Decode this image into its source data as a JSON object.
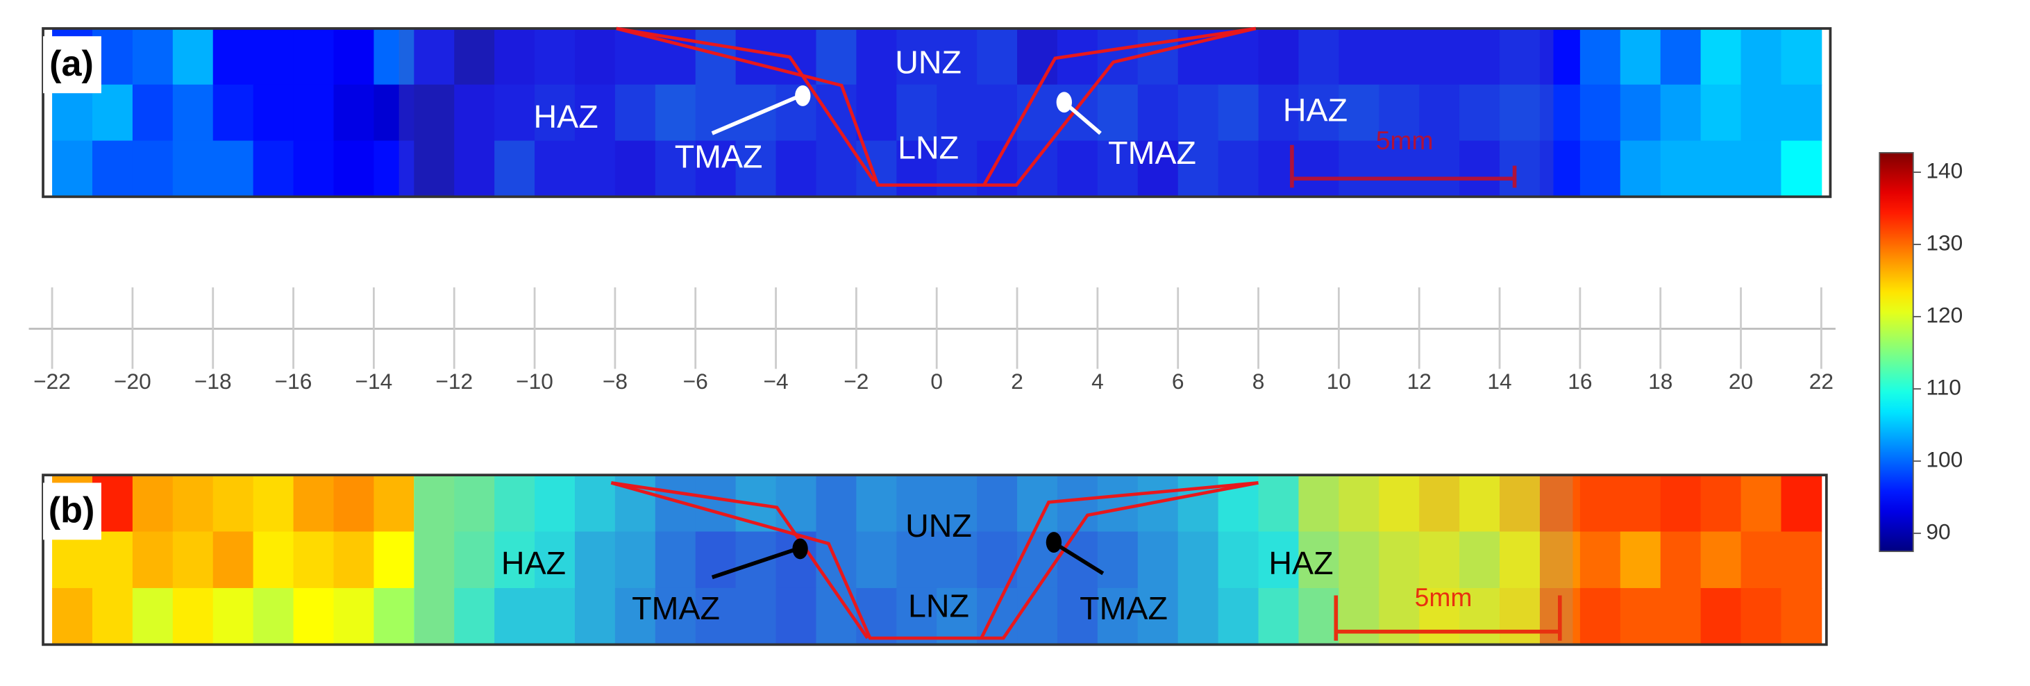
{
  "chart_data": {
    "type": "heatmap",
    "xlim": [
      -22.2,
      22.2
    ],
    "xticks": [
      {
        "value": -22,
        "label": "−22"
      },
      {
        "value": -20,
        "label": "−20"
      },
      {
        "value": -18,
        "label": "−18"
      },
      {
        "value": -16,
        "label": "−16"
      },
      {
        "value": -14,
        "label": "−14"
      },
      {
        "value": -12,
        "label": "−12"
      },
      {
        "value": -10,
        "label": "−10"
      },
      {
        "value": -8,
        "label": "−8"
      },
      {
        "value": -6,
        "label": "−6"
      },
      {
        "value": -4,
        "label": "−4"
      },
      {
        "value": -2,
        "label": "−2"
      },
      0,
      2,
      4,
      6,
      8,
      10,
      12,
      14,
      16,
      18,
      20,
      22
    ],
    "colorbar": {
      "colormap": "jet",
      "lim": [
        87.5,
        142.7
      ],
      "ticks": [
        90,
        100,
        110,
        120,
        130,
        140
      ]
    },
    "x": [
      -21.5,
      -20.5,
      -19.5,
      -18.5,
      -17.5,
      -16.5,
      -15.5,
      -14.5,
      -13.5,
      -12.5,
      -11.5,
      -10.5,
      -9.5,
      -8.5,
      -7.5,
      -6.5,
      -5.5,
      -4.5,
      -3.5,
      -2.5,
      -1.5,
      -0.5,
      0.5,
      1.5,
      2.5,
      3.5,
      4.5,
      5.5,
      6.5,
      7.5,
      8.5,
      9.5,
      10.5,
      11.5,
      12.5,
      13.5,
      14.5,
      15.5,
      16.5,
      17.5,
      18.5,
      19.5,
      20.5,
      21.5
    ],
    "panels": [
      {
        "label": "(a)",
        "annotations": {
          "haz_left": "HAZ",
          "tmaz_left": "TMAZ",
          "unz": "UNZ",
          "lnz": "LNZ",
          "tmaz_right": "TMAZ",
          "haz_right": "HAZ",
          "scale": "5mm"
        },
        "values": [
          [
            97,
            99,
            100,
            104,
            95,
            95,
            95,
            94,
            100,
            95,
            91,
            94,
            95,
            94,
            95,
            95,
            98,
            95,
            95,
            98,
            95,
            96,
            96,
            97,
            93,
            95,
            96,
            97,
            95,
            95,
            94,
            96,
            95,
            95,
            95,
            95,
            96,
            95,
            100,
            104,
            100,
            106,
            104,
            105
          ],
          [
            103,
            104,
            98,
            100,
            96,
            95,
            95,
            93,
            92,
            91,
            94,
            95,
            96,
            95,
            97,
            99,
            98,
            98,
            97,
            96,
            95,
            97,
            96,
            96,
            97,
            97,
            98,
            96,
            97,
            98,
            96,
            97,
            98,
            97,
            96,
            97,
            98,
            97,
            99,
            101,
            103,
            105,
            104,
            104
          ],
          [
            102,
            99,
            99,
            100,
            100,
            96,
            95,
            94,
            95,
            91,
            94,
            98,
            95,
            95,
            94,
            96,
            95,
            97,
            95,
            96,
            97,
            95,
            96,
            95,
            96,
            95,
            96,
            94,
            97,
            96,
            95,
            95,
            96,
            96,
            96,
            95,
            97,
            96,
            98,
            103,
            104,
            104,
            104,
            108
          ]
        ]
      },
      {
        "label": "(b)",
        "annotations": {
          "haz_left": "HAZ",
          "tmaz_left": "TMAZ",
          "unz": "UNZ",
          "lnz": "LNZ",
          "tmaz_right": "TMAZ",
          "haz_right": "HAZ",
          "scale": "5mm"
        },
        "values": [
          [
            127,
            134,
            127,
            126,
            125,
            124,
            127,
            128,
            126,
            114,
            113,
            110,
            108,
            106,
            104,
            101,
            101,
            103,
            102,
            100,
            102,
            101,
            101,
            100,
            102,
            101,
            102,
            103,
            105,
            108,
            110,
            118,
            120,
            122,
            124,
            122,
            125,
            131,
            132,
            132,
            133,
            132,
            130,
            134
          ],
          [
            124,
            124,
            126,
            125,
            127,
            123,
            124,
            125,
            122,
            114,
            112,
            109,
            107,
            104,
            103,
            100,
            98,
            99,
            98,
            100,
            101,
            100,
            100,
            99,
            100,
            99,
            100,
            102,
            104,
            107,
            108,
            116,
            118,
            120,
            121,
            119,
            122,
            128,
            130,
            127,
            131,
            129,
            131,
            131
          ],
          [
            126,
            124,
            120,
            123,
            121,
            119,
            122,
            121,
            117,
            114,
            110,
            106,
            106,
            104,
            102,
            100,
            99,
            99,
            98,
            100,
            99,
            100,
            101,
            100,
            100,
            99,
            101,
            102,
            104,
            106,
            110,
            114,
            118,
            120,
            122,
            121,
            123,
            130,
            132,
            131,
            131,
            133,
            132,
            131
          ]
        ]
      }
    ]
  }
}
